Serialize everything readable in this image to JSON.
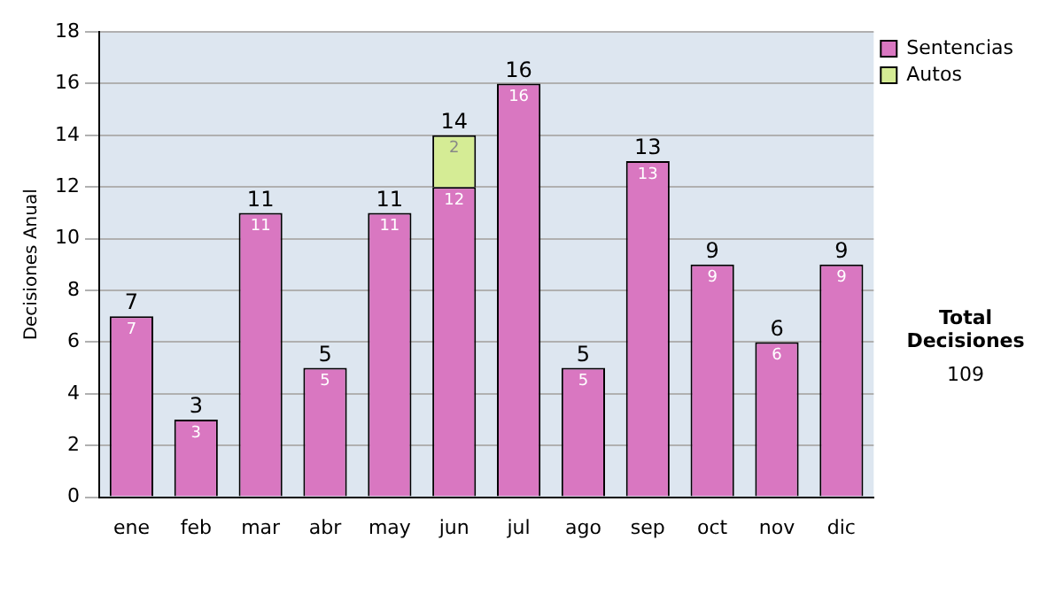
{
  "chart_data": {
    "type": "bar",
    "stacked": true,
    "ylabel": "Decisiones Anual",
    "categories": [
      "ene",
      "feb",
      "mar",
      "abr",
      "may",
      "jun",
      "jul",
      "ago",
      "sep",
      "oct",
      "nov",
      "dic"
    ],
    "series": [
      {
        "name": "Sentencias",
        "color": "#d977c1",
        "values": [
          7,
          3,
          11,
          5,
          11,
          12,
          16,
          5,
          13,
          9,
          6,
          9
        ]
      },
      {
        "name": "Autos",
        "color": "#d5ec95",
        "values": [
          null,
          null,
          null,
          null,
          null,
          2,
          null,
          null,
          null,
          null,
          null,
          null
        ]
      }
    ],
    "totals": [
      "7",
      "3",
      "11",
      "5",
      "11",
      "14",
      "16",
      "5",
      "13",
      "9",
      "6",
      "9"
    ],
    "data_labels": true,
    "ylim": [
      0,
      18
    ],
    "yticks": [
      0,
      2,
      4,
      6,
      8,
      10,
      12,
      14,
      16,
      18
    ],
    "grid": "y",
    "legend": "right",
    "annotations": [
      "Total Decisiones",
      "109"
    ]
  }
}
